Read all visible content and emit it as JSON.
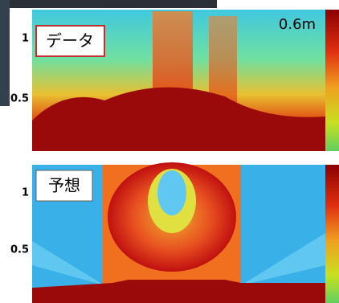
{
  "top_panel": {
    "label": "データ",
    "annotation": "0.6m",
    "yticks": [
      "1",
      "0.5"
    ]
  },
  "bottom_panel": {
    "label": "予想",
    "yticks": [
      "1",
      "0.5"
    ]
  }
}
